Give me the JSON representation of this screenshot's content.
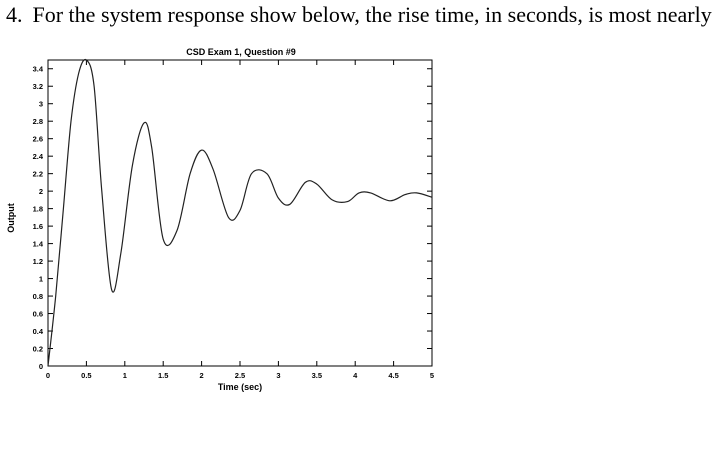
{
  "question": {
    "number": "4.",
    "text": "For the system response show below, the rise time, in seconds, is most nearly"
  },
  "chart_data": {
    "type": "line",
    "title": "CSD Exam 1, Question #9",
    "xlabel": "Time (sec)",
    "ylabel": "Output",
    "xlim": [
      0,
      5
    ],
    "ylim": [
      0,
      3.5
    ],
    "xticks": [
      "0",
      "0.5",
      "1",
      "1.5",
      "2",
      "2.5",
      "3",
      "3.5",
      "4",
      "4.5",
      "5"
    ],
    "yticks": [
      "0",
      "0.2",
      "0.4",
      "0.6",
      "0.8",
      "1",
      "1.2",
      "1.4",
      "1.6",
      "1.8",
      "2",
      "2.2",
      "2.4",
      "2.6",
      "2.8",
      "3",
      "3.2",
      "3.4"
    ],
    "grid": false,
    "series": [
      {
        "x": [
          0,
          0.1,
          0.2,
          0.3,
          0.4,
          0.5,
          0.6,
          0.7,
          0.83,
          0.95,
          1.1,
          1.25,
          1.35,
          1.5,
          1.68,
          1.85,
          2.0,
          2.15,
          2.35,
          2.5,
          2.65,
          2.85,
          3.0,
          3.15,
          3.35,
          3.5,
          3.7,
          3.9,
          4.05,
          4.2,
          4.45,
          4.65,
          4.8,
          5.0
        ],
        "y": [
          0,
          0.8,
          1.8,
          2.8,
          3.35,
          3.5,
          3.2,
          2.0,
          0.87,
          1.3,
          2.3,
          2.78,
          2.5,
          1.45,
          1.55,
          2.2,
          2.47,
          2.25,
          1.7,
          1.78,
          2.2,
          2.2,
          1.92,
          1.85,
          2.1,
          2.08,
          1.9,
          1.88,
          1.98,
          1.98,
          1.89,
          1.96,
          1.98,
          1.93
        ]
      }
    ]
  }
}
